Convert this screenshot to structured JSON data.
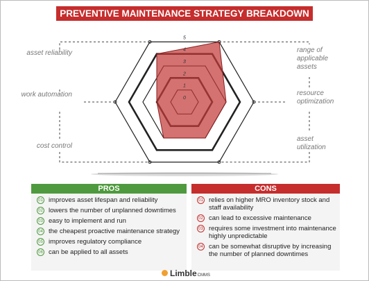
{
  "chart_data": {
    "type": "radar",
    "title": "PREVENTIVE MAINTENANCE STRATEGY BREAKDOWN",
    "categories": [
      "asset reliability",
      "range of applicable assets",
      "resource optimization",
      "asset utilization",
      "cost control",
      "work automation"
    ],
    "values": [
      4,
      5,
      3,
      3,
      3,
      2
    ],
    "color": "#c43c3c",
    "rlim": [
      0,
      5
    ],
    "rticks": [
      0,
      1,
      2,
      3,
      4,
      5
    ]
  },
  "pros": {
    "title": "PROS",
    "items": [
      {
        "number": "01",
        "text": "improves asset lifespan and reliability"
      },
      {
        "number": "02",
        "text": "lowers the number of unplanned downtimes"
      },
      {
        "number": "03",
        "text": "easy to implement and run"
      },
      {
        "number": "04",
        "text": "the cheapest proactive maintenance strategy"
      },
      {
        "number": "05",
        "text": "improves regulatory compliance"
      },
      {
        "number": "06",
        "text": "can be applied to all assets"
      }
    ]
  },
  "cons": {
    "title": "CONS",
    "items": [
      {
        "number": "01",
        "text": "relies on higher MRO inventory stock and staff availability"
      },
      {
        "number": "02",
        "text": "can lead to excessive maintenance"
      },
      {
        "number": "03",
        "text": "requires some investment into maintenance highly unpredictable"
      },
      {
        "number": "04",
        "text": "can be somewhat disruptive by increasing the number of planned downtimes"
      }
    ]
  },
  "logo": {
    "name": "Limble",
    "suffix": "CMMS"
  }
}
